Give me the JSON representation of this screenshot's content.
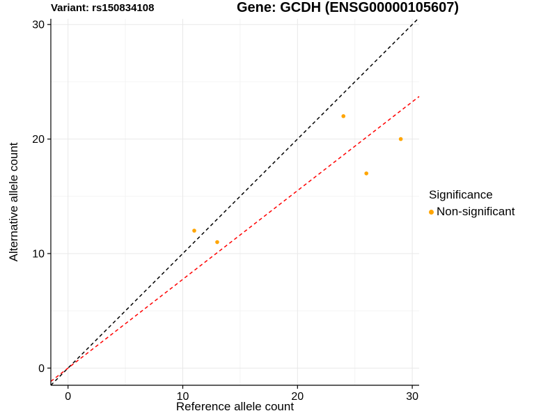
{
  "chart_data": {
    "type": "scatter",
    "title_left": "Variant: rs150834108",
    "title_right": "Gene: GCDH (ENSG00000105607)",
    "xlabel": "Reference allele count",
    "ylabel": "Alternative allele count",
    "xlim": [
      -1.5,
      30.6
    ],
    "ylim": [
      -1.5,
      30.5
    ],
    "x_major_ticks": [
      0,
      10,
      20,
      30
    ],
    "y_major_ticks": [
      0,
      10,
      20,
      30
    ],
    "x_minor_gridlines": [
      5,
      15,
      25
    ],
    "y_minor_gridlines": [
      5,
      15,
      25
    ],
    "grid": {
      "on": true,
      "major_color": "#e8e8e8",
      "minor_color": "#f4f4f4"
    },
    "axis_color": "#000000",
    "series": [
      {
        "name": "Non-significant",
        "color": "#FFA500",
        "points": [
          {
            "x": 11,
            "y": 12
          },
          {
            "x": 13,
            "y": 11
          },
          {
            "x": 24,
            "y": 22
          },
          {
            "x": 26,
            "y": 17
          },
          {
            "x": 29,
            "y": 20
          }
        ]
      }
    ],
    "reference_lines": [
      {
        "name": "identity-line",
        "slope": 1,
        "intercept": 0,
        "color": "#000000",
        "style": "dashed"
      },
      {
        "name": "expected-ratio-line",
        "slope": 0.775,
        "intercept": 0,
        "color": "#FF0000",
        "style": "dashed"
      }
    ],
    "legend": {
      "title": "Significance",
      "position": "right",
      "items": [
        {
          "label": "Non-significant",
          "color": "#FFA500"
        }
      ]
    }
  }
}
